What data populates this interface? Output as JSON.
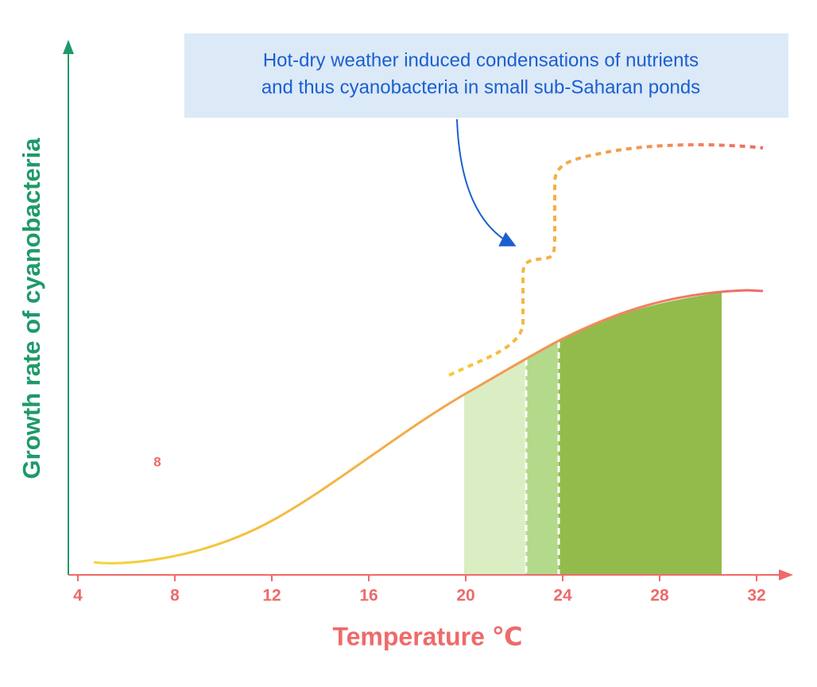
{
  "annotation": {
    "lines": [
      "Hot-dry weather induced condensations of nutrients",
      "and thus cyanobacteria in small sub-Saharan ponds"
    ]
  },
  "y_axis": {
    "label": "Growth rate of cyanobacteria"
  },
  "x_axis": {
    "label": "Temperature ℃",
    "ticks": [
      4,
      8,
      12,
      16,
      20,
      24,
      28,
      32
    ]
  },
  "stray_label": "8"
}
